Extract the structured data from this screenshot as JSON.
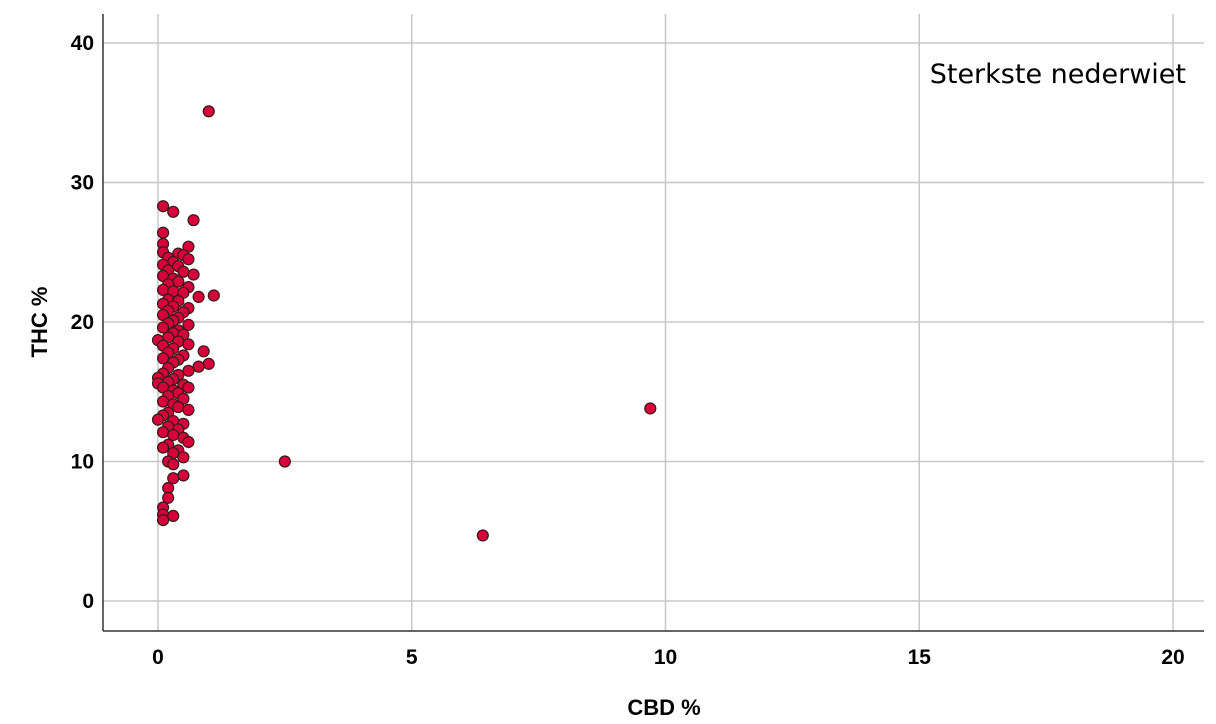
{
  "chart_data": {
    "type": "scatter",
    "annotation": "Sterkste nederwiet",
    "xlabel": "CBD %",
    "ylabel": "THC %",
    "xlim": [
      -1,
      21
    ],
    "ylim": [
      -2,
      41
    ],
    "xticks": [
      0,
      5,
      10,
      15,
      20
    ],
    "yticks": [
      0,
      10,
      20,
      30,
      40
    ],
    "grid": true,
    "marker_color": "#d6003a",
    "series": [
      {
        "points": [
          [
            1.0,
            35.1
          ],
          [
            0.1,
            28.3
          ],
          [
            0.3,
            27.9
          ],
          [
            0.7,
            27.3
          ],
          [
            0.1,
            26.4
          ],
          [
            0.1,
            25.6
          ],
          [
            0.6,
            25.4
          ],
          [
            0.1,
            25.0
          ],
          [
            0.4,
            24.9
          ],
          [
            0.5,
            24.8
          ],
          [
            0.2,
            24.6
          ],
          [
            0.6,
            24.5
          ],
          [
            0.3,
            24.3
          ],
          [
            0.1,
            24.1
          ],
          [
            0.4,
            24.0
          ],
          [
            0.2,
            23.7
          ],
          [
            0.5,
            23.6
          ],
          [
            0.7,
            23.4
          ],
          [
            0.1,
            23.3
          ],
          [
            0.3,
            23.1
          ],
          [
            0.4,
            22.9
          ],
          [
            0.2,
            22.7
          ],
          [
            0.6,
            22.5
          ],
          [
            0.1,
            22.3
          ],
          [
            0.3,
            22.2
          ],
          [
            0.5,
            22.1
          ],
          [
            1.1,
            21.9
          ],
          [
            0.8,
            21.8
          ],
          [
            0.2,
            21.6
          ],
          [
            0.4,
            21.5
          ],
          [
            0.1,
            21.3
          ],
          [
            0.3,
            21.1
          ],
          [
            0.6,
            21.0
          ],
          [
            0.2,
            20.8
          ],
          [
            0.5,
            20.7
          ],
          [
            0.1,
            20.5
          ],
          [
            0.4,
            20.3
          ],
          [
            0.3,
            20.1
          ],
          [
            0.2,
            19.9
          ],
          [
            0.6,
            19.8
          ],
          [
            0.1,
            19.6
          ],
          [
            0.4,
            19.4
          ],
          [
            0.3,
            19.2
          ],
          [
            0.5,
            19.1
          ],
          [
            0.2,
            18.9
          ],
          [
            0.0,
            18.7
          ],
          [
            0.4,
            18.6
          ],
          [
            0.6,
            18.4
          ],
          [
            0.1,
            18.3
          ],
          [
            0.3,
            18.1
          ],
          [
            0.9,
            17.9
          ],
          [
            0.2,
            17.8
          ],
          [
            0.5,
            17.6
          ],
          [
            0.1,
            17.4
          ],
          [
            0.4,
            17.3
          ],
          [
            0.3,
            17.1
          ],
          [
            1.0,
            17.0
          ],
          [
            0.8,
            16.8
          ],
          [
            0.2,
            16.7
          ],
          [
            0.6,
            16.5
          ],
          [
            0.1,
            16.3
          ],
          [
            0.4,
            16.2
          ],
          [
            0.0,
            16.0
          ],
          [
            0.3,
            15.9
          ],
          [
            0.2,
            15.7
          ],
          [
            0.5,
            15.5
          ],
          [
            0.0,
            15.6
          ],
          [
            0.1,
            15.3
          ],
          [
            0.6,
            15.3
          ],
          [
            0.3,
            15.1
          ],
          [
            0.4,
            14.9
          ],
          [
            0.2,
            14.7
          ],
          [
            0.5,
            14.5
          ],
          [
            0.1,
            14.3
          ],
          [
            0.3,
            14.1
          ],
          [
            0.4,
            13.9
          ],
          [
            0.6,
            13.7
          ],
          [
            0.2,
            13.5
          ],
          [
            0.1,
            13.3
          ],
          [
            0.0,
            13.0
          ],
          [
            0.3,
            12.9
          ],
          [
            0.5,
            12.7
          ],
          [
            0.2,
            12.5
          ],
          [
            0.4,
            12.3
          ],
          [
            0.1,
            12.1
          ],
          [
            0.3,
            11.9
          ],
          [
            0.5,
            11.7
          ],
          [
            0.6,
            11.4
          ],
          [
            0.2,
            11.2
          ],
          [
            0.1,
            11.0
          ],
          [
            0.4,
            10.8
          ],
          [
            0.3,
            10.6
          ],
          [
            0.5,
            10.3
          ],
          [
            0.2,
            10.0
          ],
          [
            0.3,
            9.8
          ],
          [
            0.5,
            9.0
          ],
          [
            0.3,
            8.8
          ],
          [
            0.2,
            8.1
          ],
          [
            0.2,
            7.4
          ],
          [
            0.1,
            6.7
          ],
          [
            0.1,
            6.2
          ],
          [
            0.3,
            6.1
          ],
          [
            0.1,
            5.8
          ],
          [
            2.5,
            10.0
          ],
          [
            9.7,
            13.8
          ],
          [
            6.4,
            4.7
          ]
        ]
      }
    ]
  }
}
